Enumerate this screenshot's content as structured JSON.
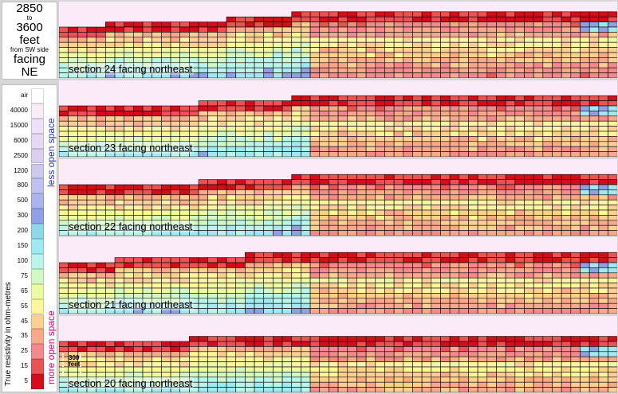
{
  "title": {
    "from": "2850",
    "to_word": "to",
    "to": "3600",
    "unit": "feet",
    "from_side": "from SW side",
    "facing_word": "facing",
    "direction": "NE"
  },
  "legend": {
    "axis_label": "True resistivity in ohm-metres",
    "less_label": "less open space",
    "more_label": "more open space",
    "ticks": [
      "air",
      "40000",
      "15000",
      "6000",
      "2500",
      "1200",
      "800",
      "500",
      "300",
      "200",
      "150",
      "100",
      "75",
      "65",
      "55",
      "45",
      "35",
      "25",
      "15",
      "5"
    ],
    "colors": [
      "#ffffff",
      "#f6ecfa",
      "#eee0f6",
      "#e4d8f2",
      "#d8d0ee",
      "#ccc8ee",
      "#bfc2f0",
      "#aab4ee",
      "#8fa0e6",
      "#8ed8ec",
      "#9ee9f2",
      "#b9f5e8",
      "#d2f8c3",
      "#ecfba1",
      "#fff59a",
      "#fdd092",
      "#f9a98a",
      "#f4888a",
      "#ec5252",
      "#d60c1a"
    ]
  },
  "scale_bar": {
    "label": "300 feet"
  },
  "panels": [
    {
      "label": "section 24 facing northeast"
    },
    {
      "label": "section 23 facing northeast"
    },
    {
      "label": "section 22 facing northeast"
    },
    {
      "label": "section 21 facing northeast"
    },
    {
      "label": "section 20 facing northeast"
    }
  ]
}
